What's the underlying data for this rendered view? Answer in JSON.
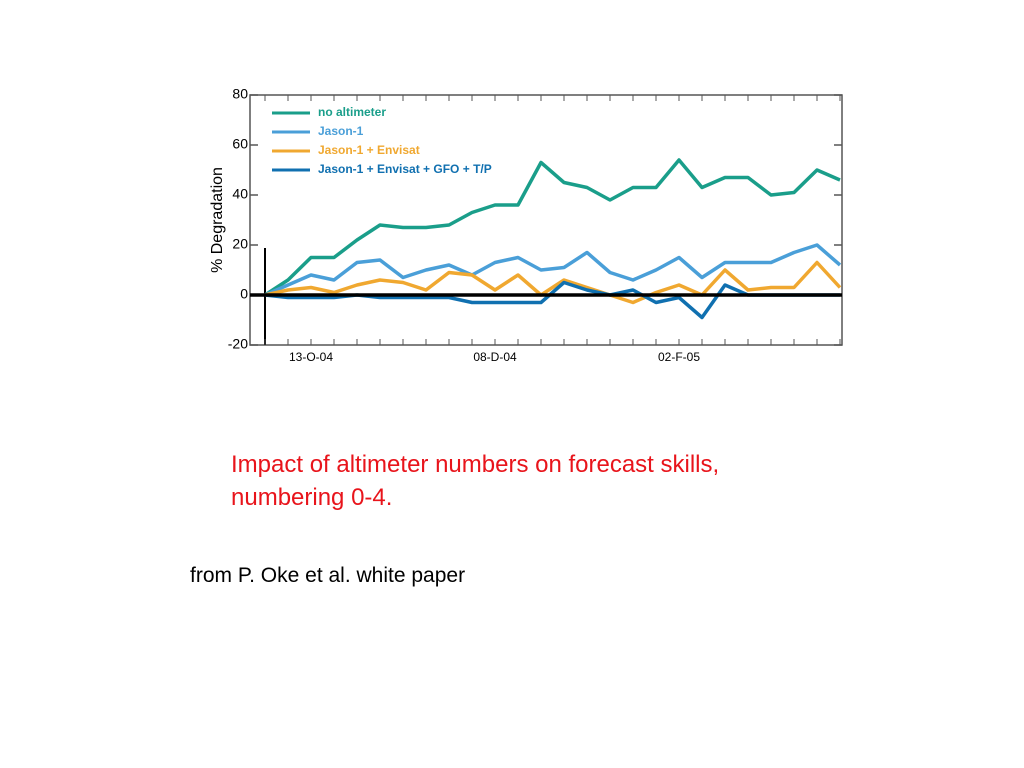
{
  "chart_data": {
    "type": "line",
    "ylabel": "% Degradation",
    "categories": [
      null,
      null,
      "13-O-04",
      null,
      null,
      null,
      null,
      null,
      null,
      null,
      "08-D-04",
      null,
      null,
      null,
      null,
      null,
      null,
      null,
      "02-F-05",
      null,
      null,
      null,
      null,
      null,
      null,
      null
    ],
    "ylim": [
      -20,
      80
    ],
    "yticks": [
      -20,
      0,
      20,
      40,
      60,
      80
    ],
    "series": [
      {
        "name": "no altimeter",
        "color": "#1a9e8a",
        "values": [
          0,
          6,
          15,
          15,
          22,
          28,
          27,
          27,
          28,
          33,
          36,
          36,
          53,
          45,
          43,
          38,
          43,
          43,
          54,
          43,
          47,
          47,
          40,
          41,
          50,
          46
        ]
      },
      {
        "name": "Jason-1",
        "color": "#4a9fd8",
        "values": [
          0,
          4,
          8,
          6,
          13,
          14,
          7,
          10,
          12,
          8,
          13,
          15,
          10,
          11,
          17,
          9,
          6,
          10,
          15,
          7,
          13,
          13,
          13,
          17,
          20,
          12
        ]
      },
      {
        "name": "Jason-1 + Envisat",
        "color": "#f0a830",
        "values": [
          0,
          2,
          3,
          1,
          4,
          6,
          5,
          2,
          9,
          8,
          2,
          8,
          0,
          6,
          3,
          0,
          -3,
          1,
          4,
          0,
          10,
          2,
          3,
          3,
          13,
          3
        ]
      },
      {
        "name": "Jason-1 + Envisat + GFO + T/P",
        "color": "#1070b0",
        "values": [
          0,
          -1,
          -1,
          -1,
          0,
          -1,
          -1,
          -1,
          -1,
          -3,
          -3,
          -3,
          -3,
          5,
          2,
          0,
          2,
          -3,
          -1,
          -9,
          4,
          0,
          0,
          0,
          0,
          0
        ]
      }
    ]
  },
  "caption": [
    "Impact of altimeter numbers on forecast skills,",
    "numbering 0-4."
  ],
  "source": "from P. Oke et al. white paper"
}
